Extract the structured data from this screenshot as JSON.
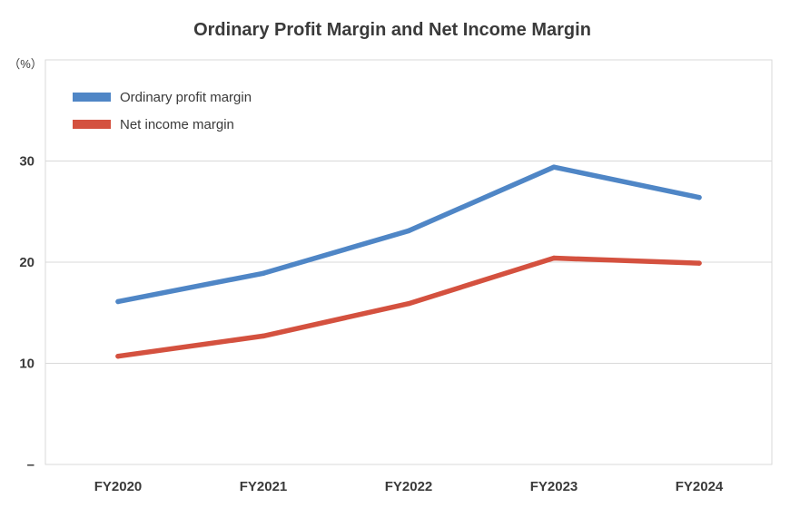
{
  "chart_data": {
    "type": "line",
    "title": "Ordinary Profit Margin and Net Income Margin",
    "unit_label": "（%）",
    "categories": [
      "FY2020",
      "FY2021",
      "FY2022",
      "FY2023",
      "FY2024"
    ],
    "series": [
      {
        "name": "Ordinary profit margin",
        "color": "#4f86c6",
        "values": [
          16.1,
          18.9,
          23.1,
          29.4,
          26.4
        ]
      },
      {
        "name": "Net income margin",
        "color": "#d4513f",
        "values": [
          10.7,
          12.7,
          15.9,
          20.4,
          19.9
        ]
      }
    ],
    "ylim": [
      0,
      40
    ],
    "yticks": [
      {
        "value": 10,
        "label": "10"
      },
      {
        "value": 20,
        "label": "20"
      },
      {
        "value": 30,
        "label": "30"
      }
    ],
    "zero_label": "–",
    "grid": true,
    "legend_position": "top-left"
  }
}
